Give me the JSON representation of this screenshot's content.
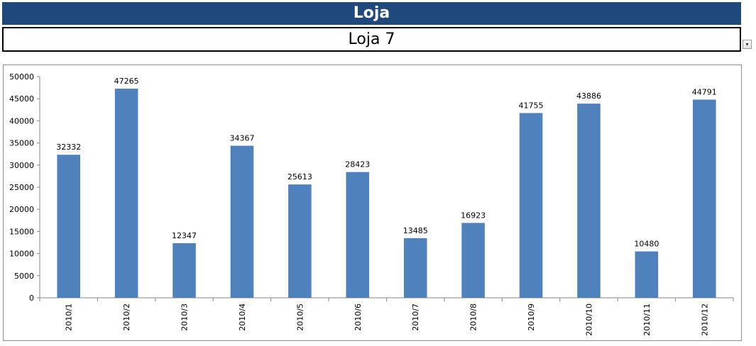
{
  "header": {
    "title": "Loja"
  },
  "selector": {
    "value": "Loja 7",
    "dropdown_icon": "chevron-down-icon"
  },
  "colors": {
    "header_bg": "#1f497d",
    "bar": "#4f81bd"
  },
  "chart_data": {
    "type": "bar",
    "title": "",
    "xlabel": "",
    "ylabel": "",
    "categories": [
      "2010/1",
      "2010/2",
      "2010/3",
      "2010/4",
      "2010/5",
      "2010/6",
      "2010/7",
      "2010/8",
      "2010/9",
      "2010/10",
      "2010/11",
      "2010/12"
    ],
    "values": [
      32332,
      47265,
      12347,
      34367,
      25613,
      28423,
      13485,
      16923,
      41755,
      43886,
      10480,
      44791
    ],
    "ylim": [
      0,
      50000
    ],
    "yticks": [
      0,
      5000,
      10000,
      15000,
      20000,
      25000,
      30000,
      35000,
      40000,
      45000,
      50000
    ],
    "data_labels": true,
    "grid": false,
    "legend": "none"
  }
}
